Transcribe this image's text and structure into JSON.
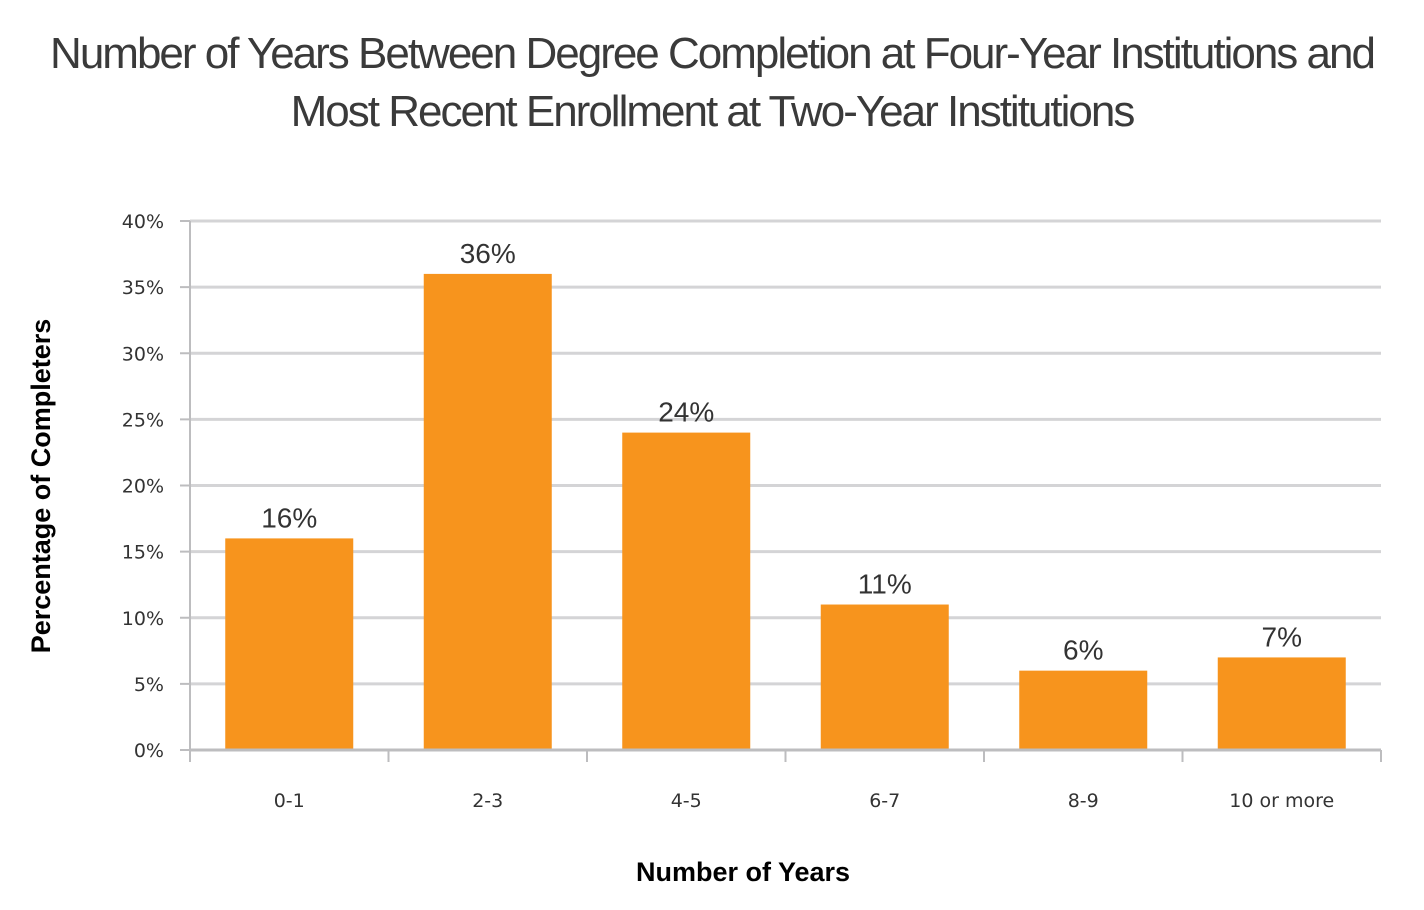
{
  "chart_data": {
    "type": "bar",
    "title_lines": [
      "Number of Years Between Degree Completion at Four-Year Institutions and",
      "Most Recent Enrollment at Two-Year Institutions"
    ],
    "xlabel": "Number of Years",
    "ylabel": "Percentage of Completers",
    "categories": [
      "0-1",
      "2-3",
      "4-5",
      "6-7",
      "8-9",
      "10 or more"
    ],
    "values": [
      16,
      36,
      24,
      11,
      6,
      7
    ],
    "data_labels": [
      "16%",
      "36%",
      "24%",
      "11%",
      "6%",
      "7%"
    ],
    "ylim": [
      0,
      40
    ],
    "yticks": [
      0,
      5,
      10,
      15,
      20,
      25,
      30,
      35,
      40
    ],
    "ytick_labels": [
      "0%",
      "5%",
      "10%",
      "15%",
      "20%",
      "25%",
      "30%",
      "35%",
      "40%"
    ],
    "grid": true,
    "legend": "none",
    "colors": {
      "bar": "#F7941D",
      "grid": "#D4D4D6",
      "axis": "#BDBDBF"
    }
  }
}
